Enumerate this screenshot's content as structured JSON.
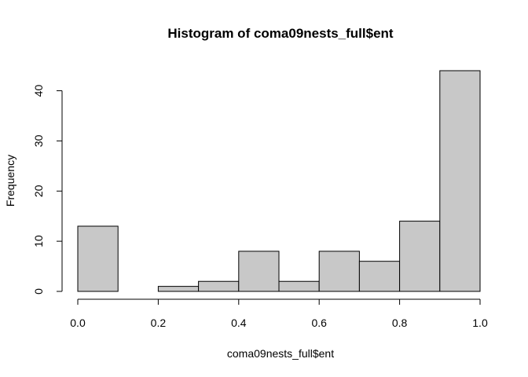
{
  "chart_data": {
    "type": "bar",
    "title": "Histogram of coma09nests_full$ent",
    "xlabel": "coma09nests_full$ent",
    "ylabel": "Frequency",
    "bins": [
      {
        "x0": 0.0,
        "x1": 0.1,
        "count": 13
      },
      {
        "x0": 0.1,
        "x1": 0.2,
        "count": 0
      },
      {
        "x0": 0.2,
        "x1": 0.3,
        "count": 1
      },
      {
        "x0": 0.3,
        "x1": 0.4,
        "count": 2
      },
      {
        "x0": 0.4,
        "x1": 0.5,
        "count": 8
      },
      {
        "x0": 0.5,
        "x1": 0.6,
        "count": 2
      },
      {
        "x0": 0.6,
        "x1": 0.7,
        "count": 8
      },
      {
        "x0": 0.7,
        "x1": 0.8,
        "count": 6
      },
      {
        "x0": 0.8,
        "x1": 0.9,
        "count": 14
      },
      {
        "x0": 0.9,
        "x1": 1.0,
        "count": 44
      }
    ],
    "xlim": [
      0.0,
      1.0
    ],
    "ylim": [
      0,
      44
    ],
    "x_ticks": [
      0.0,
      0.2,
      0.4,
      0.6,
      0.8,
      1.0
    ],
    "x_tick_labels": [
      "0.0",
      "0.2",
      "0.4",
      "0.6",
      "0.8",
      "1.0"
    ],
    "y_ticks": [
      0,
      10,
      20,
      30,
      40
    ],
    "y_tick_labels": [
      "0",
      "10",
      "20",
      "30",
      "40"
    ],
    "colors": {
      "bar_fill": "#c8c8c8",
      "bar_stroke": "#000000"
    },
    "grid": false
  }
}
